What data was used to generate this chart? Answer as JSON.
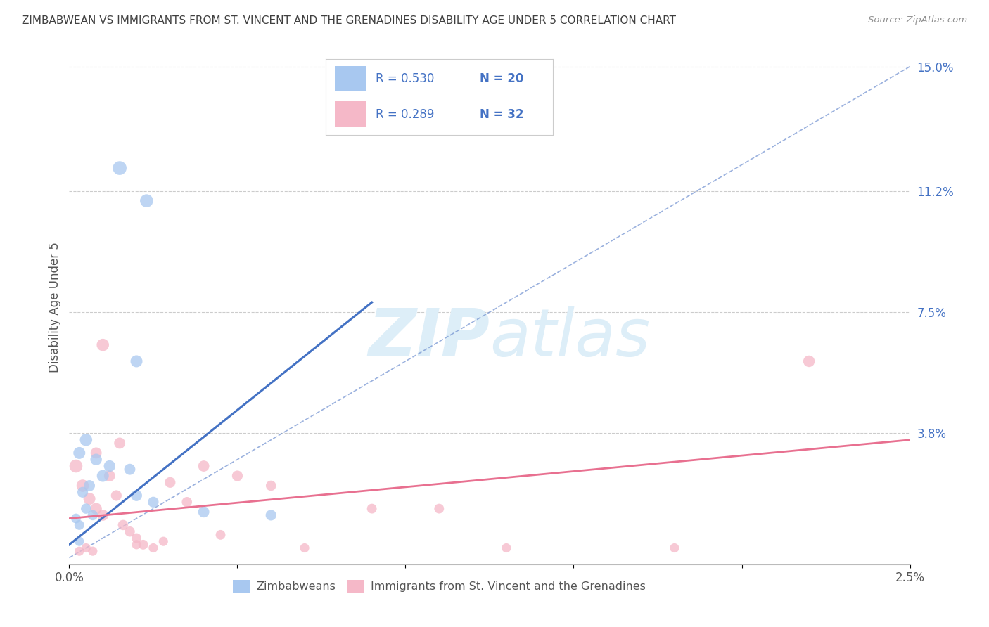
{
  "title": "ZIMBABWEAN VS IMMIGRANTS FROM ST. VINCENT AND THE GRENADINES DISABILITY AGE UNDER 5 CORRELATION CHART",
  "source": "Source: ZipAtlas.com",
  "ylabel": "Disability Age Under 5",
  "xlabel": "",
  "xlim": [
    0.0,
    0.025
  ],
  "ylim": [
    -0.002,
    0.155
  ],
  "blue_R": 0.53,
  "blue_N": 20,
  "pink_R": 0.289,
  "pink_N": 32,
  "blue_color": "#a8c8f0",
  "pink_color": "#f5b8c8",
  "blue_line_color": "#4472c4",
  "pink_line_color": "#e87090",
  "diag_line_color": "#7090d0",
  "title_color": "#404040",
  "source_color": "#909090",
  "watermark_color": "#ddeef8",
  "blue_scatter_x": [
    0.0015,
    0.0023,
    0.0005,
    0.0003,
    0.0008,
    0.0012,
    0.0018,
    0.001,
    0.0006,
    0.0004,
    0.002,
    0.0025,
    0.0005,
    0.0007,
    0.0002,
    0.0003,
    0.006,
    0.004,
    0.002,
    0.0003
  ],
  "blue_scatter_y": [
    0.119,
    0.109,
    0.036,
    0.032,
    0.03,
    0.028,
    0.027,
    0.025,
    0.022,
    0.02,
    0.019,
    0.017,
    0.015,
    0.013,
    0.012,
    0.01,
    0.013,
    0.014,
    0.06,
    0.005
  ],
  "blue_scatter_sizes": [
    200,
    180,
    160,
    150,
    140,
    140,
    130,
    150,
    130,
    120,
    130,
    120,
    110,
    110,
    100,
    100,
    120,
    130,
    150,
    90
  ],
  "blue_line_x0": 0.0,
  "blue_line_y0": 0.004,
  "blue_line_x1": 0.009,
  "blue_line_y1": 0.078,
  "pink_line_x0": 0.0,
  "pink_line_y0": 0.012,
  "pink_line_x1": 0.025,
  "pink_line_y1": 0.036,
  "pink_scatter_x": [
    0.0002,
    0.0004,
    0.0006,
    0.0008,
    0.001,
    0.0012,
    0.0014,
    0.0016,
    0.0018,
    0.002,
    0.0022,
    0.0025,
    0.0028,
    0.003,
    0.004,
    0.005,
    0.006,
    0.007,
    0.009,
    0.011,
    0.013,
    0.018,
    0.022,
    0.0015,
    0.0008,
    0.0005,
    0.0035,
    0.0045,
    0.001,
    0.002,
    0.0003,
    0.0007
  ],
  "pink_scatter_y": [
    0.028,
    0.022,
    0.018,
    0.015,
    0.013,
    0.025,
    0.019,
    0.01,
    0.008,
    0.006,
    0.004,
    0.003,
    0.005,
    0.023,
    0.028,
    0.025,
    0.022,
    0.003,
    0.015,
    0.015,
    0.003,
    0.003,
    0.06,
    0.035,
    0.032,
    0.003,
    0.017,
    0.007,
    0.065,
    0.004,
    0.002,
    0.002
  ],
  "pink_scatter_sizes": [
    180,
    160,
    150,
    140,
    130,
    130,
    120,
    110,
    110,
    100,
    100,
    90,
    90,
    120,
    130,
    120,
    110,
    90,
    100,
    100,
    90,
    90,
    140,
    130,
    130,
    90,
    110,
    100,
    160,
    90,
    90,
    90
  ]
}
